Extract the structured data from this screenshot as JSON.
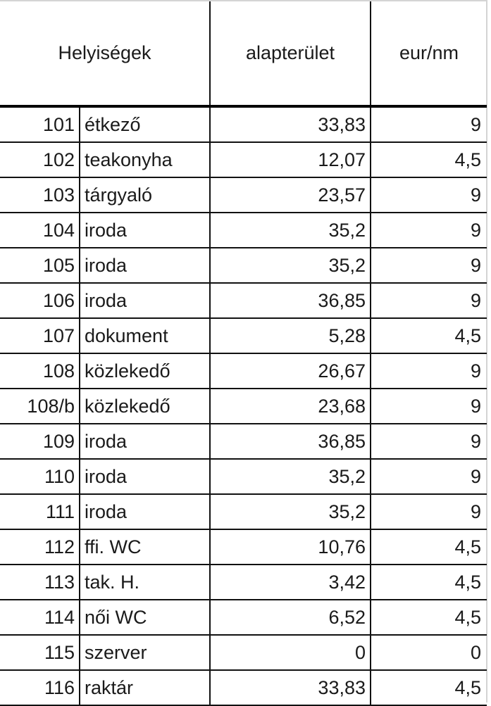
{
  "headers": {
    "rooms": "Helyiségek",
    "area": "alapterület",
    "price": "eur/nm"
  },
  "rows": [
    {
      "num": "101",
      "name": "étkező",
      "area": "33,83",
      "price": "9"
    },
    {
      "num": "102",
      "name": "teakonyha",
      "area": "12,07",
      "price": "4,5"
    },
    {
      "num": "103",
      "name": "tárgyaló",
      "area": "23,57",
      "price": "9"
    },
    {
      "num": "104",
      "name": "iroda",
      "area": "35,2",
      "price": "9"
    },
    {
      "num": "105",
      "name": "iroda",
      "area": "35,2",
      "price": "9"
    },
    {
      "num": "106",
      "name": "iroda",
      "area": "36,85",
      "price": "9"
    },
    {
      "num": "107",
      "name": "dokument",
      "area": "5,28",
      "price": "4,5"
    },
    {
      "num": "108",
      "name": "közlekedő",
      "area": "26,67",
      "price": "9"
    },
    {
      "num": "108/b",
      "name": "közlekedő",
      "area": "23,68",
      "price": "9"
    },
    {
      "num": "109",
      "name": "iroda",
      "area": "36,85",
      "price": "9"
    },
    {
      "num": "110",
      "name": "iroda",
      "area": "35,2",
      "price": "9"
    },
    {
      "num": "111",
      "name": "iroda",
      "area": "35,2",
      "price": "9"
    },
    {
      "num": "112",
      "name": "ffi. WC",
      "area": "10,76",
      "price": "4,5"
    },
    {
      "num": "113",
      "name": "tak. H.",
      "area": "3,42",
      "price": "4,5"
    },
    {
      "num": "114",
      "name": "női WC",
      "area": "6,52",
      "price": "4,5"
    },
    {
      "num": "115",
      "name": "szerver",
      "area": "0",
      "price": "0"
    },
    {
      "num": "116",
      "name": "raktár",
      "area": "33,83",
      "price": "4,5"
    }
  ]
}
